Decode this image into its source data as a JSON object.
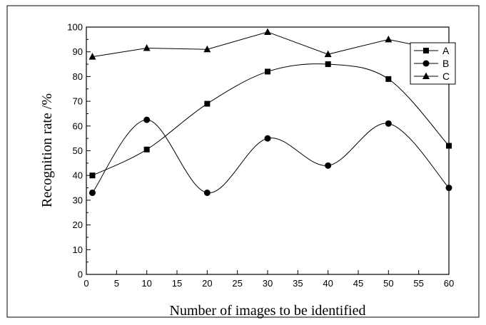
{
  "chart_data": {
    "type": "line",
    "title": "",
    "xlabel": "Number of images to be identified",
    "ylabel": "Recognition rate /%",
    "xlim": [
      0,
      60
    ],
    "ylim": [
      0,
      100
    ],
    "xticks": [
      0,
      5,
      10,
      15,
      20,
      25,
      30,
      35,
      40,
      45,
      50,
      55,
      60
    ],
    "yticks": [
      0,
      10,
      20,
      30,
      40,
      50,
      60,
      70,
      80,
      90,
      100
    ],
    "grid": false,
    "legend_position": "top-right",
    "series": [
      {
        "name": "A",
        "marker": "square",
        "x": [
          1,
          10,
          20,
          30,
          40,
          50,
          60
        ],
        "y": [
          40,
          50.5,
          69,
          82,
          85,
          79,
          52
        ]
      },
      {
        "name": "B",
        "marker": "circle",
        "x": [
          1,
          10,
          20,
          30,
          40,
          50,
          60
        ],
        "y": [
          33,
          62.5,
          33,
          55,
          44,
          61,
          35
        ]
      },
      {
        "name": "C",
        "marker": "triangle",
        "x": [
          1,
          10,
          20,
          30,
          40,
          50,
          60
        ],
        "y": [
          88,
          91.5,
          91,
          98,
          89,
          95,
          90
        ]
      }
    ]
  }
}
